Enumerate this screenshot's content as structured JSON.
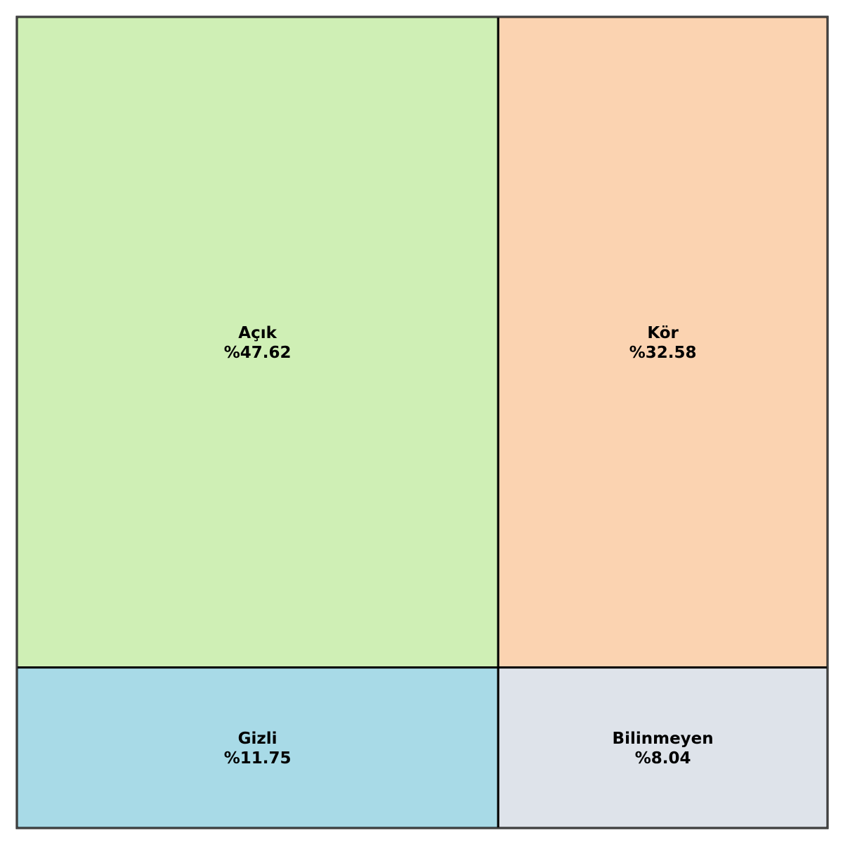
{
  "chart_data": {
    "type": "treemap",
    "title": "",
    "items": [
      {
        "label": "Açık",
        "value_text": "%47.62",
        "value": 47.62,
        "color": "#cfefb5"
      },
      {
        "label": "Kör",
        "value_text": "%32.58",
        "value": 32.58,
        "color": "#fbd3b1"
      },
      {
        "label": "Gizli",
        "value_text": "%11.75",
        "value": 11.75,
        "color": "#a8dae7"
      },
      {
        "label": "Bilinmeyen",
        "value_text": "%8.04",
        "value": 8.04,
        "color": "#dee3ea"
      }
    ],
    "layout": "2x2 grid: columns split by Açık+Gizli vs Kör+Bilinmeyen; rows split by Açık+Kör vs Gizli+Bilinmeyen"
  }
}
